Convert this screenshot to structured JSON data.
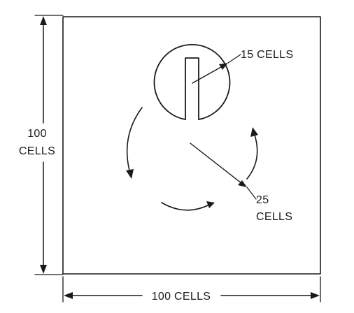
{
  "labels": {
    "height_top": "100",
    "height_bottom": "CELLS",
    "width": "100 CELLS",
    "radius_small": "15 CELLS",
    "radius_large_top": "25",
    "radius_large_bottom": "CELLS"
  },
  "colors": {
    "ink": "#1a1a1a",
    "background": "#ffffff"
  }
}
